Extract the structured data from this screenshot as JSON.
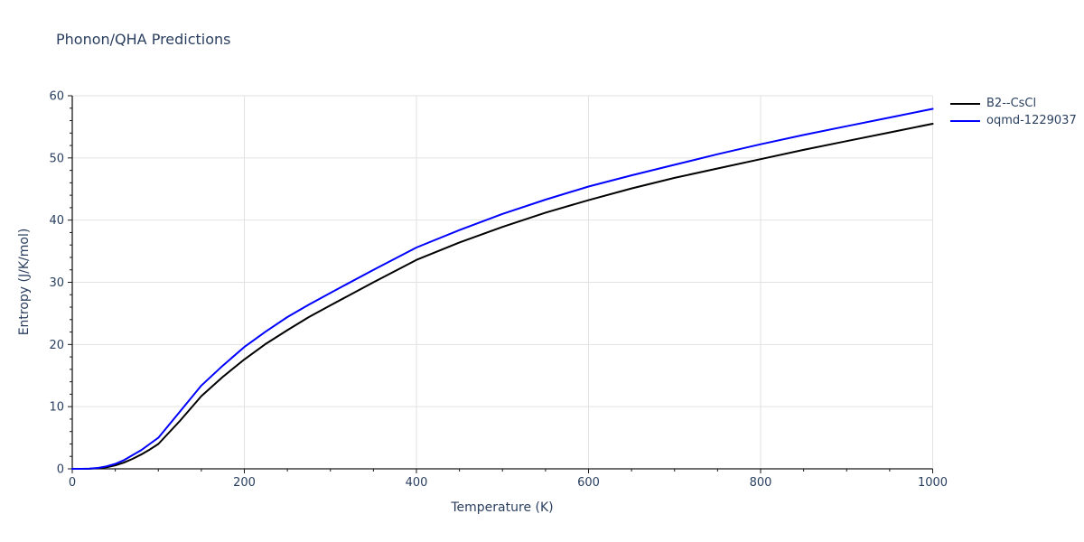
{
  "title": "Phonon/QHA Predictions",
  "colors": {
    "text": "#2a3f5f",
    "grid": "#e2e2e2",
    "axis": "#1a1a1a",
    "background": "#ffffff"
  },
  "chart_data": {
    "type": "line",
    "title": "Phonon/QHA Predictions",
    "xlabel": "Temperature (K)",
    "ylabel": "Entropy (J/K/mol)",
    "xlim": [
      0,
      1000
    ],
    "ylim": [
      0,
      60
    ],
    "x_major_ticks": [
      0,
      200,
      400,
      600,
      800,
      1000
    ],
    "x_minor_step": 50,
    "y_major_ticks": [
      0,
      10,
      20,
      30,
      40,
      50,
      60
    ],
    "y_minor_step": 2,
    "grid": true,
    "legend_position": "top-right-outside",
    "x": [
      0,
      10,
      20,
      30,
      40,
      50,
      60,
      70,
      80,
      90,
      100,
      125,
      150,
      175,
      200,
      225,
      250,
      275,
      300,
      350,
      400,
      450,
      500,
      550,
      600,
      650,
      700,
      750,
      800,
      850,
      900,
      950,
      1000
    ],
    "series": [
      {
        "name": "B2--CsCl",
        "color": "#000000",
        "values": [
          0,
          0,
          0.02,
          0.1,
          0.25,
          0.55,
          1.0,
          1.6,
          2.3,
          3.1,
          4.0,
          7.7,
          11.7,
          14.8,
          17.6,
          20.1,
          22.3,
          24.4,
          26.3,
          30.0,
          33.6,
          36.4,
          38.9,
          41.2,
          43.2,
          45.1,
          46.8,
          48.3,
          49.8,
          51.3,
          52.7,
          54.1,
          55.5
        ]
      },
      {
        "name": "oqmd-1229037",
        "color": "#0000ff",
        "values": [
          0,
          0,
          0.05,
          0.15,
          0.4,
          0.8,
          1.4,
          2.2,
          3.0,
          4.0,
          5.0,
          9.2,
          13.4,
          16.6,
          19.6,
          22.1,
          24.4,
          26.4,
          28.3,
          32.0,
          35.6,
          38.4,
          41.0,
          43.3,
          45.4,
          47.2,
          48.9,
          50.6,
          52.2,
          53.7,
          55.1,
          56.5,
          57.9
        ]
      }
    ]
  }
}
